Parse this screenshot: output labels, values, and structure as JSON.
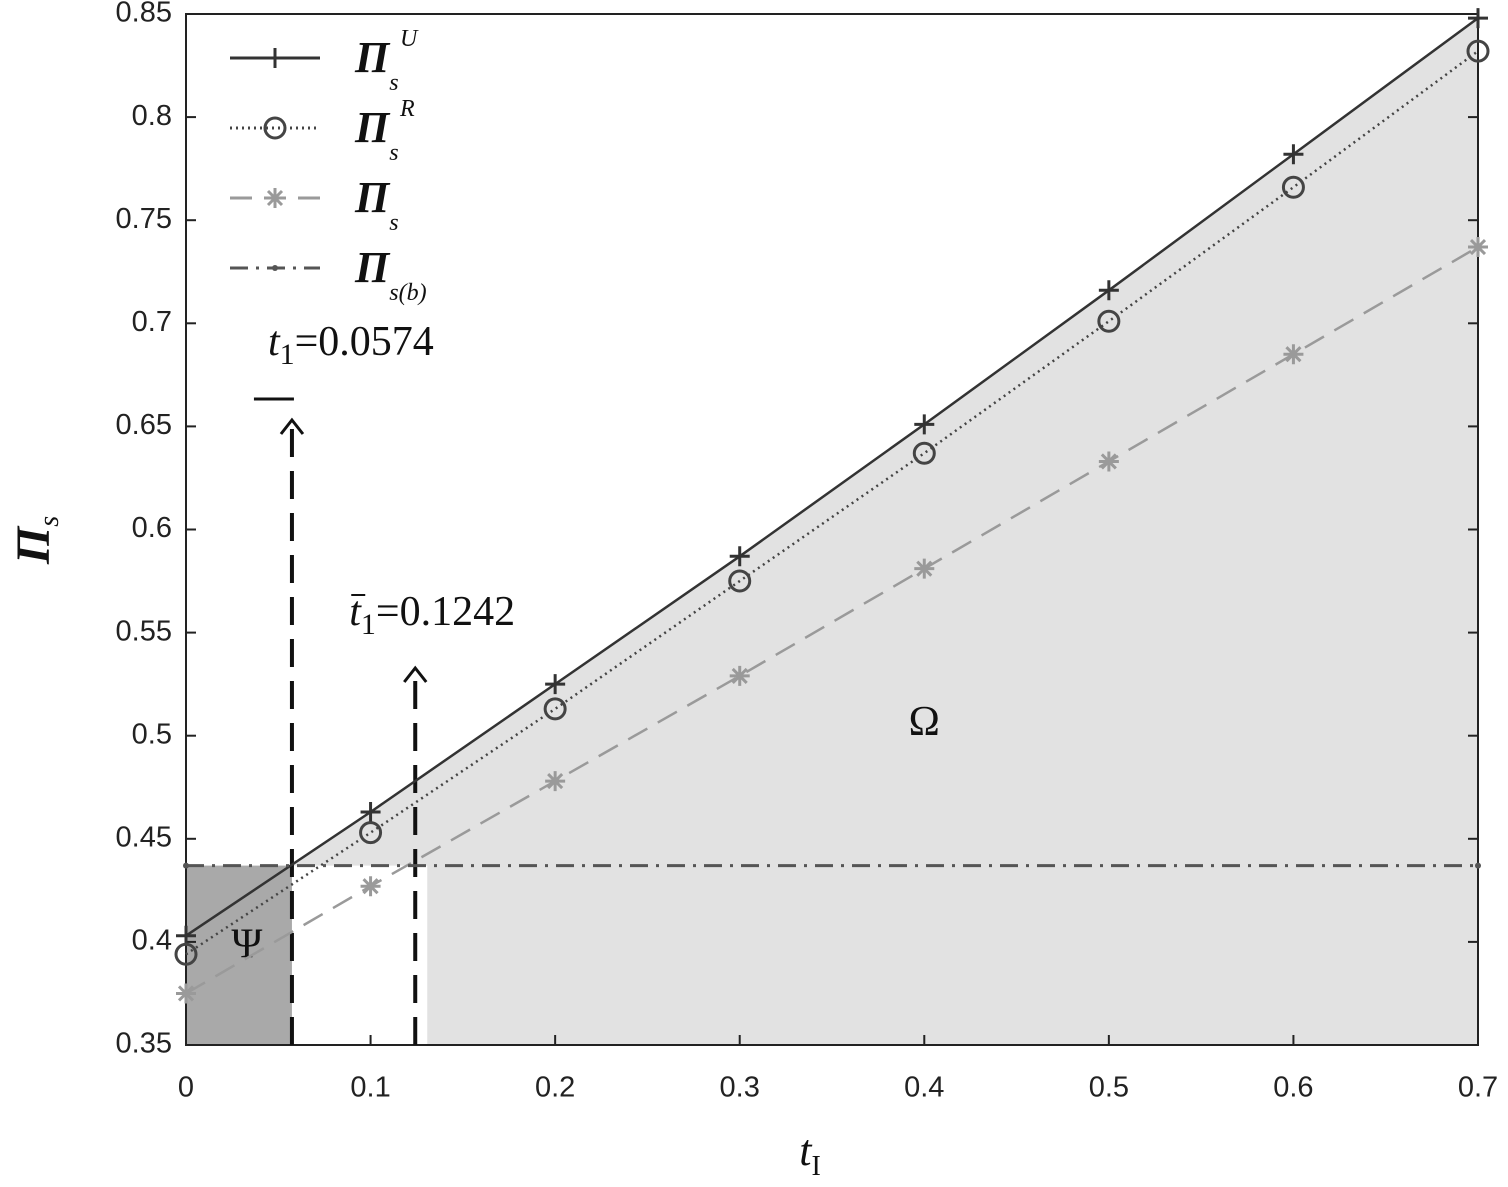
{
  "chart_data": {
    "type": "line",
    "xlabel": "t",
    "xlabel_sub": "I",
    "ylabel": "Π",
    "ylabel_sub": "s",
    "x": [
      0,
      0.1,
      0.2,
      0.3,
      0.4,
      0.5,
      0.6,
      0.7
    ],
    "xlim": [
      0,
      0.7
    ],
    "xticks": [
      0,
      0.1,
      0.2,
      0.3,
      0.4,
      0.5,
      0.6,
      0.7
    ],
    "ylim": [
      0.35,
      0.85
    ],
    "yticks": [
      0.35,
      0.4,
      0.45,
      0.5,
      0.55,
      0.6,
      0.65,
      0.7,
      0.75,
      0.8,
      0.85
    ],
    "legend": "upper left",
    "series": [
      {
        "name": "Π",
        "name_sub": "s",
        "name_sup": "U",
        "color": "#333333",
        "dash": "solid",
        "marker": "plus",
        "values": [
          0.403,
          0.463,
          0.525,
          0.587,
          0.651,
          0.716,
          0.782,
          0.848
        ]
      },
      {
        "name": "Π",
        "name_sub": "s",
        "name_sup": "R",
        "color": "#444444",
        "dash": "dotted",
        "marker": "circle",
        "values": [
          0.394,
          0.453,
          0.513,
          0.575,
          0.637,
          0.701,
          0.766,
          0.832
        ]
      },
      {
        "name": "Π",
        "name_sub": "s",
        "color": "#9a9a9a",
        "dash": "dashed",
        "marker": "asterisk",
        "values": [
          0.375,
          0.427,
          0.478,
          0.529,
          0.581,
          0.633,
          0.685,
          0.737
        ]
      },
      {
        "name": "Π",
        "name_sub": "s(b)",
        "color": "#555555",
        "dash": "dashdot",
        "marker": "dot",
        "x": [
          0,
          0.7
        ],
        "values": [
          0.437,
          0.437
        ]
      }
    ],
    "annotations": [
      {
        "symbol": "t",
        "subscript": "1",
        "label": "=0.0574",
        "value": 0.0574,
        "mark": "underline"
      },
      {
        "symbol": "t",
        "subscript": "1",
        "label": "=0.1242",
        "value": 0.1242,
        "mark": "overline"
      }
    ],
    "regions": [
      {
        "label": "Ψ",
        "color": "#a9a9a9"
      },
      {
        "label": "Ω",
        "color": "#e2e2e2"
      }
    ]
  }
}
